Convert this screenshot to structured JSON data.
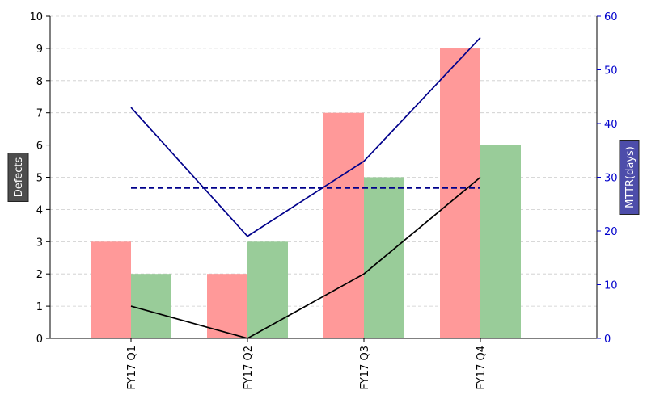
{
  "chart_data": {
    "type": "bar",
    "categories": [
      "FY17 Q1",
      "FY17 Q2",
      "FY17 Q3",
      "FY17 Q4"
    ],
    "y_left": {
      "label": "Defects",
      "ylim": [
        0,
        10
      ],
      "ticks": [
        0,
        1,
        2,
        3,
        4,
        5,
        6,
        7,
        8,
        9,
        10
      ]
    },
    "y_right": {
      "label": "MTTR(days)",
      "ylim": [
        0,
        60
      ],
      "ticks": [
        0,
        10,
        20,
        30,
        40,
        50,
        60
      ]
    },
    "bar_series": [
      {
        "values": [
          3,
          2,
          7,
          9
        ],
        "color": "#ff9999"
      },
      {
        "values": [
          2,
          3,
          5,
          6
        ],
        "color": "#99cc99"
      }
    ],
    "line_series": [
      {
        "axis": "left",
        "values": [
          1,
          0,
          2,
          5
        ],
        "color": "#000000",
        "style": "solid"
      },
      {
        "axis": "right",
        "values": [
          43,
          19,
          33,
          56
        ],
        "color": "#00008b",
        "style": "solid"
      },
      {
        "axis": "right",
        "values": [
          28,
          28,
          28,
          28
        ],
        "color": "#00008b",
        "style": "dashed"
      }
    ],
    "grid": true,
    "colors": {
      "right_axis": "#0000cc",
      "left_label_bg": "#4d4d4d",
      "right_label_bg": "#4d4daa"
    }
  }
}
